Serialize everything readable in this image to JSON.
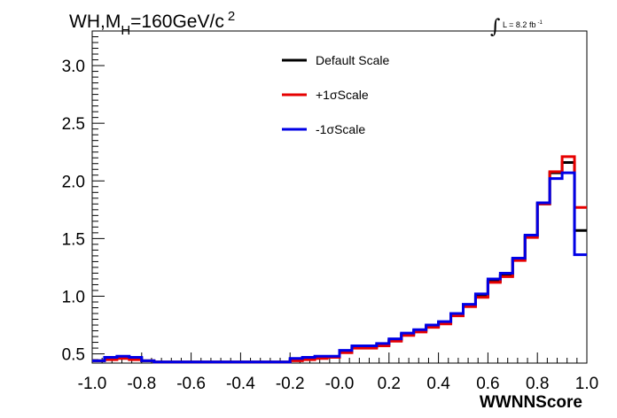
{
  "chart_data": {
    "type": "line",
    "drawstyle": "steps",
    "title_main": "WH,M",
    "title_sub": "H",
    "title_rest": "=160GeV/c",
    "title_sup": "2",
    "lumi_symbol": "∫",
    "lumi_text": "L = 8.2 fb",
    "lumi_sup": "-1",
    "xlabel": "WWNNScore",
    "ylabel": "",
    "xlim": [
      -1.0,
      1.0
    ],
    "ylim": [
      0.42,
      3.3
    ],
    "x_ticks": [
      -1.0,
      -0.8,
      -0.6,
      -0.4,
      -0.2,
      0.0,
      0.2,
      0.4,
      0.6,
      0.8,
      1.0
    ],
    "x_tick_labels": [
      "-1.0",
      "-0.8",
      "-0.6",
      "-0.4",
      "-0.2",
      "-0.0",
      "0.2",
      "0.4",
      "0.6",
      "0.8",
      "1.0"
    ],
    "y_ticks": [
      0.5,
      1.0,
      1.5,
      2.0,
      2.5,
      3.0
    ],
    "y_tick_labels": [
      "0.5",
      "1.0",
      "1.5",
      "2.0",
      "2.5",
      "3.0"
    ],
    "grid": false,
    "legend_position": "top-center",
    "bin_edges": [
      -1.0,
      -0.95,
      -0.9,
      -0.85,
      -0.8,
      -0.75,
      -0.7,
      -0.65,
      -0.6,
      -0.55,
      -0.5,
      -0.45,
      -0.4,
      -0.35,
      -0.3,
      -0.25,
      -0.2,
      -0.15,
      -0.1,
      -0.05,
      0.0,
      0.05,
      0.1,
      0.15,
      0.2,
      0.25,
      0.3,
      0.35,
      0.4,
      0.45,
      0.5,
      0.55,
      0.6,
      0.65,
      0.7,
      0.75,
      0.8,
      0.85,
      0.9,
      0.95,
      1.0
    ],
    "series": [
      {
        "name": "Default Scale",
        "color": "#000000",
        "values": [
          0.44,
          0.46,
          0.47,
          0.46,
          0.44,
          0.43,
          0.43,
          0.43,
          0.43,
          0.43,
          0.43,
          0.43,
          0.43,
          0.43,
          0.43,
          0.43,
          0.45,
          0.46,
          0.47,
          0.47,
          0.52,
          0.56,
          0.56,
          0.58,
          0.62,
          0.67,
          0.7,
          0.74,
          0.77,
          0.84,
          0.92,
          1.0,
          1.13,
          1.18,
          1.32,
          1.52,
          1.8,
          2.07,
          2.16,
          1.57
        ]
      },
      {
        "name": "+1σScale",
        "color": "#e60000",
        "values": [
          0.44,
          0.45,
          0.46,
          0.45,
          0.44,
          0.43,
          0.43,
          0.43,
          0.43,
          0.43,
          0.43,
          0.43,
          0.43,
          0.43,
          0.43,
          0.43,
          0.44,
          0.45,
          0.46,
          0.47,
          0.51,
          0.55,
          0.55,
          0.57,
          0.61,
          0.66,
          0.69,
          0.73,
          0.76,
          0.83,
          0.91,
          0.99,
          1.12,
          1.17,
          1.31,
          1.51,
          1.8,
          2.08,
          2.21,
          1.77
        ]
      },
      {
        "name": "-1σScale",
        "color": "#0000e6",
        "values": [
          0.44,
          0.47,
          0.48,
          0.47,
          0.44,
          0.43,
          0.43,
          0.43,
          0.43,
          0.43,
          0.43,
          0.43,
          0.43,
          0.43,
          0.43,
          0.43,
          0.46,
          0.47,
          0.48,
          0.48,
          0.53,
          0.57,
          0.57,
          0.59,
          0.63,
          0.68,
          0.71,
          0.75,
          0.78,
          0.85,
          0.93,
          1.02,
          1.15,
          1.2,
          1.33,
          1.53,
          1.81,
          2.02,
          2.07,
          1.36
        ]
      }
    ]
  }
}
